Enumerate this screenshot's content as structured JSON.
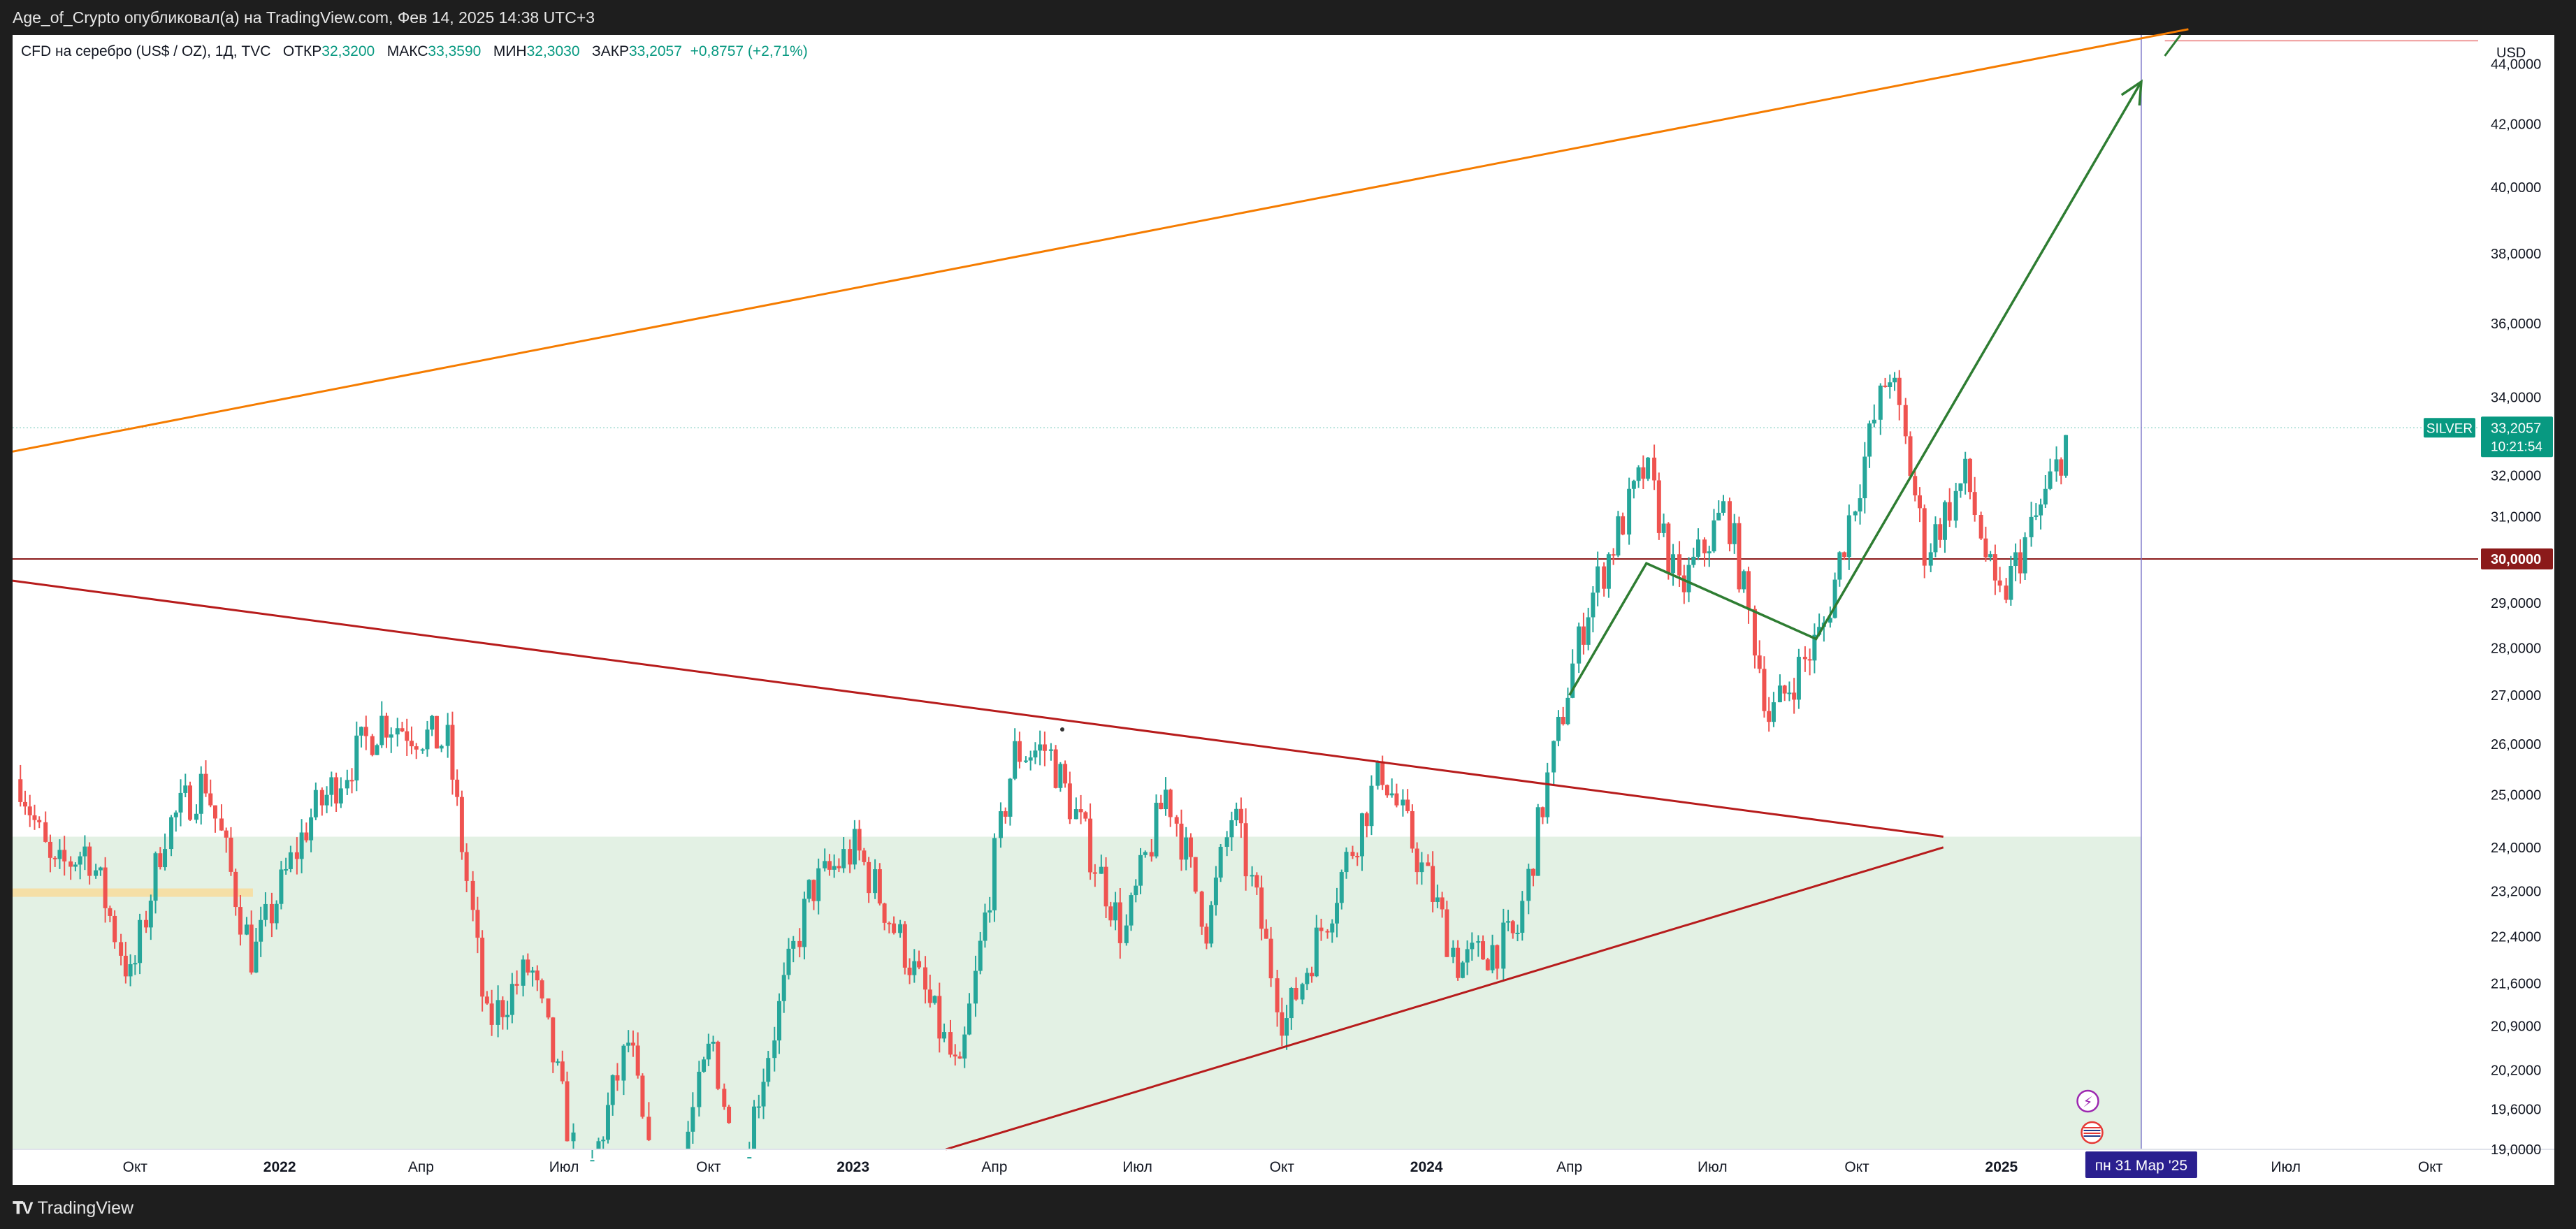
{
  "header": {
    "published_text": "Age_of_Crypto опубликовал(а) на TradingView.com, Фев 14, 2025 14:38 UTC+3"
  },
  "legend": {
    "symbol": "CFD на серебро (US$ / OZ), 1Д, TVC",
    "open_label": "ОТКР",
    "open_value": "32,3200",
    "high_label": "МАКС",
    "high_value": "33,3590",
    "low_label": "МИН",
    "low_value": "32,3030",
    "close_label": "ЗАКР",
    "close_value": "33,2057",
    "change": "+0,8757 (+2,71%)"
  },
  "price_axis": {
    "currency": "USD",
    "ticks": [
      "44,0000",
      "42,0000",
      "40,0000",
      "38,0000",
      "36,0000",
      "34,0000",
      "32,0000",
      "31,0000",
      "29,0000",
      "28,0000",
      "27,0000",
      "26,0000",
      "25,0000",
      "24,0000",
      "23,2000",
      "22,4000",
      "21,6000",
      "20,9000",
      "20,2000",
      "19,6000",
      "19,0000"
    ],
    "symbol_tag": "SILVER",
    "last_price": "33,2057",
    "countdown": "10:21:54",
    "level_label": "30,0000"
  },
  "time_axis": {
    "labels": [
      "Окт",
      "2022",
      "Апр",
      "Июл",
      "Окт",
      "2023",
      "Апр",
      "Июл",
      "Окт",
      "2024",
      "Апр",
      "Июл",
      "Окт",
      "2025",
      "Июл",
      "Окт"
    ],
    "cursor_label": "пн 31 Мар '25"
  },
  "colors": {
    "up": "#26a69a",
    "down": "#ef5350",
    "orange_line": "#f57c00",
    "triangle_lines": "#b71c1c",
    "arrow": "#2e7d32",
    "zone": "#e3f1e4",
    "level_line": "#8b1a1a",
    "cursor_tag": "#2a1f8f",
    "price_tag": "#089981"
  },
  "chart_data": {
    "type": "candlestick",
    "instrument": "CFD на серебро (US$ / OZ), 1Д, TVC",
    "currency": "USD",
    "y_scale": "log",
    "ylim": [
      19.0,
      45.0
    ],
    "x_range": [
      "2021-07-15",
      "2025-10-31"
    ],
    "series_approx_close": [
      {
        "date": "2021-07-20",
        "close": 25.3
      },
      {
        "date": "2021-08-10",
        "close": 23.5
      },
      {
        "date": "2021-09-01",
        "close": 24.0
      },
      {
        "date": "2021-09-29",
        "close": 21.6
      },
      {
        "date": "2021-10-20",
        "close": 24.3
      },
      {
        "date": "2021-11-15",
        "close": 25.3
      },
      {
        "date": "2021-12-15",
        "close": 22.0
      },
      {
        "date": "2022-01-20",
        "close": 24.5
      },
      {
        "date": "2022-03-08",
        "close": 26.5
      },
      {
        "date": "2022-04-18",
        "close": 26.0
      },
      {
        "date": "2022-05-13",
        "close": 20.9
      },
      {
        "date": "2022-06-10",
        "close": 21.9
      },
      {
        "date": "2022-07-14",
        "close": 18.3
      },
      {
        "date": "2022-08-12",
        "close": 20.7
      },
      {
        "date": "2022-09-01",
        "close": 17.6
      },
      {
        "date": "2022-10-04",
        "close": 20.7
      },
      {
        "date": "2022-10-20",
        "close": 18.5
      },
      {
        "date": "2022-12-05",
        "close": 23.2
      },
      {
        "date": "2023-01-03",
        "close": 24.0
      },
      {
        "date": "2023-02-28",
        "close": 20.7
      },
      {
        "date": "2023-03-10",
        "close": 20.0
      },
      {
        "date": "2023-04-14",
        "close": 25.8
      },
      {
        "date": "2023-05-05",
        "close": 25.9
      },
      {
        "date": "2023-06-23",
        "close": 22.4
      },
      {
        "date": "2023-07-20",
        "close": 25.1
      },
      {
        "date": "2023-08-15",
        "close": 22.5
      },
      {
        "date": "2023-08-31",
        "close": 24.7
      },
      {
        "date": "2023-10-03",
        "close": 20.9
      },
      {
        "date": "2023-11-01",
        "close": 22.9
      },
      {
        "date": "2023-12-04",
        "close": 25.5
      },
      {
        "date": "2024-01-22",
        "close": 21.9
      },
      {
        "date": "2024-02-28",
        "close": 22.4
      },
      {
        "date": "2024-04-12",
        "close": 28.8
      },
      {
        "date": "2024-05-20",
        "close": 32.2
      },
      {
        "date": "2024-06-10",
        "close": 29.2
      },
      {
        "date": "2024-07-10",
        "close": 31.2
      },
      {
        "date": "2024-08-07",
        "close": 26.5
      },
      {
        "date": "2024-09-10",
        "close": 28.4
      },
      {
        "date": "2024-10-22",
        "close": 34.8
      },
      {
        "date": "2024-11-14",
        "close": 30.2
      },
      {
        "date": "2024-12-10",
        "close": 32.0
      },
      {
        "date": "2024-12-30",
        "close": 28.9
      },
      {
        "date": "2025-01-30",
        "close": 31.5
      },
      {
        "date": "2025-02-14",
        "close": 33.2057
      }
    ],
    "last_candle": {
      "date": "2025-02-14",
      "open": 32.32,
      "high": 33.359,
      "low": 32.303,
      "close": 33.2057,
      "change": 0.8757,
      "change_pct": 2.71
    },
    "annotations": {
      "horizontal_level": 30.0,
      "target_level": 44.8,
      "cursor_date": "2025-03-31",
      "zone": {
        "from": "2021-07-01",
        "to": "2025-03-31",
        "low": 19.0,
        "high": 24.2
      },
      "orange_channel": {
        "start": {
          "date": "2021-07-15",
          "price": 32.6
        },
        "end": {
          "date": "2025-04-30",
          "price": 45.2
        }
      },
      "triangle_upper": {
        "start": {
          "date": "2021-07-15",
          "price": 29.5
        },
        "end": {
          "date": "2024-11-25",
          "price": 24.2
        }
      },
      "triangle_lower": {
        "start": {
          "date": "2023-03-01",
          "price": 19.0
        },
        "end": {
          "date": "2024-11-25",
          "price": 24.0
        }
      },
      "projection_arrow": [
        {
          "date": "2024-04-01",
          "price": 27.0
        },
        {
          "date": "2024-05-20",
          "price": 29.9
        },
        {
          "date": "2024-09-05",
          "price": 28.2
        },
        {
          "date": "2025-03-31",
          "price": 43.4
        }
      ]
    }
  }
}
